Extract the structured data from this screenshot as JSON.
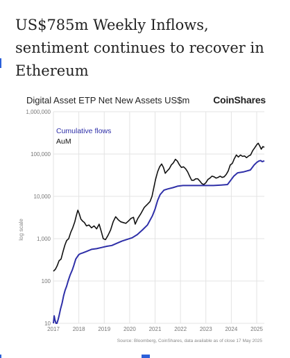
{
  "article": {
    "headline": "US$785m Weekly Inflows, sentiment continues to recover in Ethereum"
  },
  "chart": {
    "title": "Digital Asset ETP Net New Assets US$m",
    "brand": "CoinShares",
    "source": "Source: Bloomberg, CoinShares, data available as of close 17 May 2025",
    "ylabel": "log scale"
  },
  "chart_data": {
    "type": "line",
    "title": "Digital Asset ETP Net New Assets US$m",
    "xlabel": "",
    "ylabel": "log scale",
    "y_scale": "log",
    "ylim": [
      10,
      1000000
    ],
    "xlim": [
      2017.0,
      2025.3
    ],
    "x_ticks": [
      "2017",
      "2018",
      "2019",
      "2020",
      "2021",
      "2022",
      "2023",
      "2024",
      "2025"
    ],
    "y_ticks": [
      "10",
      "100",
      "1,000",
      "10,000",
      "100,000",
      "1,000,000"
    ],
    "grid": true,
    "legend": "top-left",
    "series": [
      {
        "name": "Cumulative flows",
        "color": "#2e2fa8",
        "points": [
          [
            2017.0,
            10
          ],
          [
            2017.03,
            15
          ],
          [
            2017.06,
            12
          ],
          [
            2017.1,
            10
          ],
          [
            2017.14,
            10
          ],
          [
            2017.18,
            12
          ],
          [
            2017.22,
            15
          ],
          [
            2017.28,
            22
          ],
          [
            2017.34,
            30
          ],
          [
            2017.4,
            45
          ],
          [
            2017.46,
            60
          ],
          [
            2017.52,
            75
          ],
          [
            2017.58,
            100
          ],
          [
            2017.66,
            140
          ],
          [
            2017.74,
            180
          ],
          [
            2017.8,
            230
          ],
          [
            2017.88,
            330
          ],
          [
            2017.95,
            380
          ],
          [
            2018.0,
            420
          ],
          [
            2018.06,
            440
          ],
          [
            2018.15,
            460
          ],
          [
            2018.3,
            500
          ],
          [
            2018.5,
            560
          ],
          [
            2018.7,
            580
          ],
          [
            2018.9,
            620
          ],
          [
            2019.1,
            660
          ],
          [
            2019.3,
            690
          ],
          [
            2019.5,
            780
          ],
          [
            2019.7,
            880
          ],
          [
            2019.9,
            960
          ],
          [
            2020.1,
            1050
          ],
          [
            2020.3,
            1250
          ],
          [
            2020.5,
            1600
          ],
          [
            2020.7,
            2100
          ],
          [
            2020.9,
            3500
          ],
          [
            2021.0,
            5000
          ],
          [
            2021.1,
            8000
          ],
          [
            2021.2,
            11000
          ],
          [
            2021.35,
            14000
          ],
          [
            2021.5,
            15000
          ],
          [
            2021.7,
            16000
          ],
          [
            2021.9,
            17500
          ],
          [
            2022.1,
            18000
          ],
          [
            2022.4,
            18000
          ],
          [
            2022.7,
            18000
          ],
          [
            2023.0,
            18000
          ],
          [
            2023.3,
            18000
          ],
          [
            2023.6,
            18500
          ],
          [
            2023.85,
            19000
          ],
          [
            2024.0,
            25000
          ],
          [
            2024.1,
            30000
          ],
          [
            2024.25,
            36000
          ],
          [
            2024.5,
            38000
          ],
          [
            2024.75,
            42000
          ],
          [
            2024.9,
            55000
          ],
          [
            2025.0,
            63000
          ],
          [
            2025.08,
            68000
          ],
          [
            2025.15,
            70000
          ],
          [
            2025.22,
            66000
          ],
          [
            2025.3,
            69000
          ]
        ]
      },
      {
        "name": "AuM",
        "color": "#111111",
        "points": [
          [
            2017.0,
            170
          ],
          [
            2017.08,
            190
          ],
          [
            2017.15,
            230
          ],
          [
            2017.22,
            300
          ],
          [
            2017.3,
            330
          ],
          [
            2017.38,
            500
          ],
          [
            2017.45,
            700
          ],
          [
            2017.52,
            900
          ],
          [
            2017.6,
            1000
          ],
          [
            2017.68,
            1400
          ],
          [
            2017.76,
            1800
          ],
          [
            2017.84,
            2500
          ],
          [
            2017.9,
            3500
          ],
          [
            2017.96,
            4700
          ],
          [
            2018.02,
            3800
          ],
          [
            2018.08,
            2900
          ],
          [
            2018.15,
            2600
          ],
          [
            2018.22,
            2400
          ],
          [
            2018.3,
            2000
          ],
          [
            2018.4,
            2100
          ],
          [
            2018.5,
            1800
          ],
          [
            2018.6,
            2000
          ],
          [
            2018.7,
            1700
          ],
          [
            2018.8,
            2200
          ],
          [
            2018.88,
            1500
          ],
          [
            2018.96,
            1000
          ],
          [
            2019.05,
            950
          ],
          [
            2019.15,
            1200
          ],
          [
            2019.25,
            1600
          ],
          [
            2019.35,
            2500
          ],
          [
            2019.45,
            3300
          ],
          [
            2019.55,
            2800
          ],
          [
            2019.65,
            2500
          ],
          [
            2019.75,
            2400
          ],
          [
            2019.85,
            2300
          ],
          [
            2019.95,
            2600
          ],
          [
            2020.05,
            3000
          ],
          [
            2020.15,
            3200
          ],
          [
            2020.22,
            2200
          ],
          [
            2020.32,
            3000
          ],
          [
            2020.45,
            4000
          ],
          [
            2020.58,
            5500
          ],
          [
            2020.7,
            6500
          ],
          [
            2020.8,
            7500
          ],
          [
            2020.88,
            10000
          ],
          [
            2020.95,
            16000
          ],
          [
            2021.02,
            25000
          ],
          [
            2021.1,
            38000
          ],
          [
            2021.18,
            50000
          ],
          [
            2021.26,
            58000
          ],
          [
            2021.33,
            48000
          ],
          [
            2021.4,
            35000
          ],
          [
            2021.48,
            40000
          ],
          [
            2021.56,
            45000
          ],
          [
            2021.64,
            55000
          ],
          [
            2021.72,
            62000
          ],
          [
            2021.8,
            75000
          ],
          [
            2021.88,
            68000
          ],
          [
            2021.96,
            55000
          ],
          [
            2022.04,
            48000
          ],
          [
            2022.12,
            50000
          ],
          [
            2022.2,
            45000
          ],
          [
            2022.28,
            38000
          ],
          [
            2022.36,
            30000
          ],
          [
            2022.44,
            24000
          ],
          [
            2022.52,
            24000
          ],
          [
            2022.6,
            26000
          ],
          [
            2022.68,
            26000
          ],
          [
            2022.76,
            23000
          ],
          [
            2022.84,
            20000
          ],
          [
            2022.92,
            19000
          ],
          [
            2023.0,
            21000
          ],
          [
            2023.08,
            25000
          ],
          [
            2023.16,
            27000
          ],
          [
            2023.24,
            30000
          ],
          [
            2023.32,
            29000
          ],
          [
            2023.4,
            27000
          ],
          [
            2023.48,
            28000
          ],
          [
            2023.56,
            30000
          ],
          [
            2023.64,
            28000
          ],
          [
            2023.72,
            29000
          ],
          [
            2023.8,
            33000
          ],
          [
            2023.88,
            40000
          ],
          [
            2023.96,
            55000
          ],
          [
            2024.04,
            60000
          ],
          [
            2024.12,
            78000
          ],
          [
            2024.2,
            95000
          ],
          [
            2024.28,
            85000
          ],
          [
            2024.36,
            95000
          ],
          [
            2024.44,
            88000
          ],
          [
            2024.52,
            90000
          ],
          [
            2024.6,
            82000
          ],
          [
            2024.68,
            90000
          ],
          [
            2024.76,
            95000
          ],
          [
            2024.84,
            120000
          ],
          [
            2024.92,
            140000
          ],
          [
            2025.0,
            165000
          ],
          [
            2025.06,
            180000
          ],
          [
            2025.12,
            155000
          ],
          [
            2025.18,
            130000
          ],
          [
            2025.24,
            150000
          ],
          [
            2025.3,
            145000
          ]
        ]
      }
    ]
  }
}
